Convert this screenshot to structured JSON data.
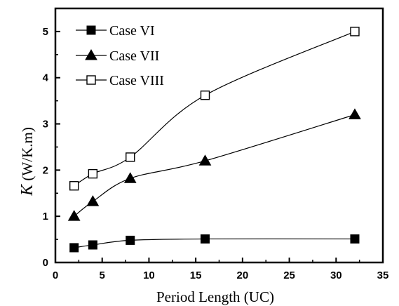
{
  "chart_data": {
    "type": "line",
    "xlabel": "Period Length (UC)",
    "ylabel_symbol": "K",
    "ylabel_unit": " (W/K.m)",
    "xlim": [
      0,
      35
    ],
    "ylim": [
      0,
      5.5
    ],
    "xticks": [
      0,
      5,
      10,
      15,
      20,
      25,
      30,
      35
    ],
    "yticks": [
      0,
      1,
      2,
      3,
      4,
      5
    ],
    "grid": false,
    "legend_position": "top-left",
    "series": [
      {
        "name": "Case VI",
        "marker": "filled-square",
        "color": "#000000",
        "x": [
          2,
          4,
          8,
          16,
          32
        ],
        "y": [
          0.32,
          0.38,
          0.48,
          0.51,
          0.51
        ]
      },
      {
        "name": "Case VII",
        "marker": "filled-triangle",
        "color": "#000000",
        "x": [
          2,
          4,
          8,
          16,
          32
        ],
        "y": [
          1.0,
          1.32,
          1.82,
          2.2,
          3.2
        ]
      },
      {
        "name": "Case VIII",
        "marker": "open-square",
        "color": "#000000",
        "x": [
          2,
          4,
          8,
          16,
          32
        ],
        "y": [
          1.66,
          1.92,
          2.28,
          3.62,
          5.0
        ]
      }
    ]
  }
}
